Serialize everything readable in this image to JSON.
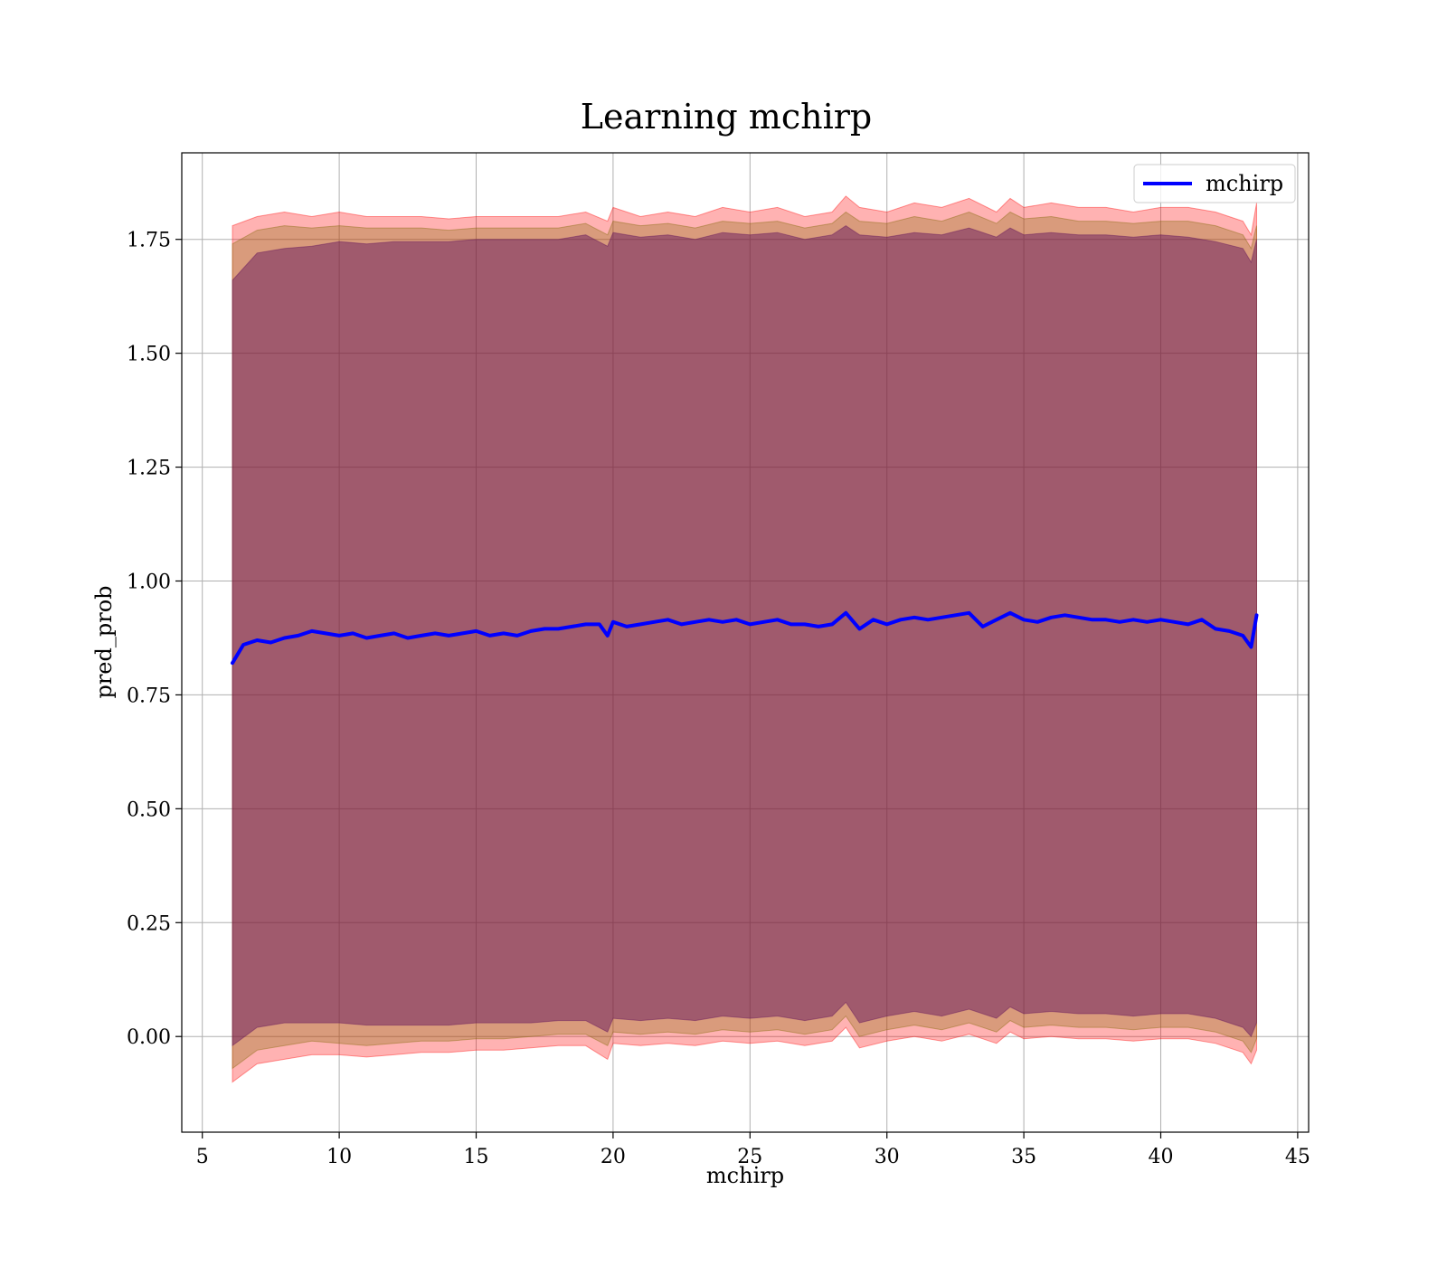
{
  "chart_data": {
    "type": "line",
    "title": "Learning mchirp",
    "xlabel": "mchirp",
    "ylabel": "pred_prob",
    "xlim": [
      4.25,
      45.4
    ],
    "ylim": [
      -0.21,
      1.94
    ],
    "xticks": [
      5,
      10,
      15,
      20,
      25,
      30,
      35,
      40,
      45
    ],
    "xtick_labels": [
      "5",
      "10",
      "15",
      "20",
      "25",
      "30",
      "35",
      "40",
      "45"
    ],
    "yticks": [
      0.0,
      0.25,
      0.5,
      0.75,
      1.0,
      1.25,
      1.5,
      1.75
    ],
    "ytick_labels": [
      "0.00",
      "0.25",
      "0.50",
      "0.75",
      "1.00",
      "1.25",
      "1.50",
      "1.75"
    ],
    "grid": true,
    "legend": {
      "placement": "top-right",
      "entries": [
        "mchirp"
      ]
    },
    "series": [
      {
        "name": "mchirp",
        "color": "#0000ff",
        "x": [
          6.1,
          6.5,
          7,
          7.5,
          8,
          8.5,
          9,
          9.5,
          10,
          10.5,
          11,
          11.5,
          12,
          12.5,
          13,
          13.5,
          14,
          14.5,
          15,
          15.5,
          16,
          16.5,
          17,
          17.5,
          18,
          18.5,
          19,
          19.5,
          19.8,
          20,
          20.5,
          21,
          21.5,
          22,
          22.5,
          23,
          23.5,
          24,
          24.5,
          25,
          25.5,
          26,
          26.5,
          27,
          27.5,
          28,
          28.5,
          29,
          29.5,
          30,
          30.5,
          31,
          31.5,
          32,
          32.5,
          33,
          33.5,
          34,
          34.5,
          35,
          35.5,
          36,
          36.5,
          37,
          37.5,
          38,
          38.5,
          39,
          39.5,
          40,
          40.5,
          41,
          41.5,
          42,
          42.5,
          43,
          43.3,
          43.5
        ],
        "y": [
          0.82,
          0.86,
          0.87,
          0.865,
          0.875,
          0.88,
          0.89,
          0.885,
          0.88,
          0.885,
          0.875,
          0.88,
          0.885,
          0.875,
          0.88,
          0.885,
          0.88,
          0.885,
          0.89,
          0.88,
          0.885,
          0.88,
          0.89,
          0.895,
          0.895,
          0.9,
          0.905,
          0.905,
          0.88,
          0.91,
          0.9,
          0.905,
          0.91,
          0.915,
          0.905,
          0.91,
          0.915,
          0.91,
          0.915,
          0.905,
          0.91,
          0.915,
          0.905,
          0.905,
          0.9,
          0.905,
          0.93,
          0.895,
          0.915,
          0.905,
          0.915,
          0.92,
          0.915,
          0.92,
          0.925,
          0.93,
          0.9,
          0.915,
          0.93,
          0.915,
          0.91,
          0.92,
          0.925,
          0.92,
          0.915,
          0.915,
          0.91,
          0.915,
          0.91,
          0.915,
          0.91,
          0.905,
          0.915,
          0.895,
          0.89,
          0.88,
          0.855,
          0.925
        ]
      }
    ],
    "bands": [
      {
        "color": "#ff0000",
        "opacity": 0.3,
        "x": [
          6.1,
          7,
          8,
          9,
          10,
          11,
          12,
          13,
          14,
          15,
          16,
          17,
          18,
          19,
          19.8,
          20,
          21,
          22,
          23,
          24,
          25,
          26,
          27,
          28,
          28.5,
          29,
          30,
          31,
          32,
          33,
          34,
          34.5,
          35,
          36,
          37,
          38,
          39,
          40,
          41,
          42,
          43,
          43.3,
          43.5
        ],
        "upper": [
          1.78,
          1.8,
          1.81,
          1.8,
          1.81,
          1.8,
          1.8,
          1.8,
          1.795,
          1.8,
          1.8,
          1.8,
          1.8,
          1.81,
          1.79,
          1.82,
          1.8,
          1.81,
          1.8,
          1.82,
          1.81,
          1.82,
          1.8,
          1.81,
          1.845,
          1.82,
          1.81,
          1.83,
          1.82,
          1.84,
          1.81,
          1.84,
          1.82,
          1.83,
          1.82,
          1.82,
          1.81,
          1.82,
          1.82,
          1.81,
          1.79,
          1.76,
          1.83
        ],
        "lower": [
          -0.1,
          -0.06,
          -0.05,
          -0.04,
          -0.04,
          -0.045,
          -0.04,
          -0.035,
          -0.035,
          -0.03,
          -0.03,
          -0.025,
          -0.02,
          -0.02,
          -0.05,
          -0.015,
          -0.02,
          -0.015,
          -0.02,
          -0.01,
          -0.015,
          -0.01,
          -0.02,
          -0.01,
          0.02,
          -0.025,
          -0.01,
          0.0,
          -0.01,
          0.005,
          -0.015,
          0.01,
          -0.005,
          0.0,
          -0.005,
          -0.005,
          -0.01,
          -0.005,
          -0.005,
          -0.015,
          -0.035,
          -0.06,
          -0.03
        ]
      },
      {
        "color": "#806600",
        "opacity": 0.3,
        "x": [
          6.1,
          7,
          8,
          9,
          10,
          11,
          12,
          13,
          14,
          15,
          16,
          17,
          18,
          19,
          19.8,
          20,
          21,
          22,
          23,
          24,
          25,
          26,
          27,
          28,
          28.5,
          29,
          30,
          31,
          32,
          33,
          34,
          34.5,
          35,
          36,
          37,
          38,
          39,
          40,
          41,
          42,
          43,
          43.3,
          43.5
        ],
        "upper": [
          1.74,
          1.77,
          1.78,
          1.775,
          1.78,
          1.775,
          1.775,
          1.775,
          1.77,
          1.775,
          1.775,
          1.775,
          1.775,
          1.785,
          1.76,
          1.79,
          1.78,
          1.785,
          1.775,
          1.79,
          1.785,
          1.79,
          1.775,
          1.785,
          1.81,
          1.79,
          1.785,
          1.8,
          1.79,
          1.81,
          1.785,
          1.81,
          1.795,
          1.8,
          1.79,
          1.79,
          1.785,
          1.79,
          1.79,
          1.78,
          1.76,
          1.73,
          1.78
        ],
        "lower": [
          -0.07,
          -0.03,
          -0.02,
          -0.01,
          -0.015,
          -0.02,
          -0.015,
          -0.01,
          -0.01,
          -0.005,
          -0.005,
          0.0,
          0.005,
          0.005,
          -0.02,
          0.01,
          0.005,
          0.01,
          0.005,
          0.015,
          0.01,
          0.015,
          0.005,
          0.015,
          0.045,
          0.0,
          0.015,
          0.025,
          0.015,
          0.03,
          0.01,
          0.035,
          0.02,
          0.025,
          0.02,
          0.02,
          0.015,
          0.02,
          0.02,
          0.01,
          -0.01,
          -0.035,
          -0.005
        ]
      },
      {
        "color": "#5a0a5a",
        "opacity": 0.45,
        "x": [
          6.1,
          7,
          8,
          9,
          10,
          11,
          12,
          13,
          14,
          15,
          16,
          17,
          18,
          19,
          19.8,
          20,
          21,
          22,
          23,
          24,
          25,
          26,
          27,
          28,
          28.5,
          29,
          30,
          31,
          32,
          33,
          34,
          34.5,
          35,
          36,
          37,
          38,
          39,
          40,
          41,
          42,
          43,
          43.3,
          43.5
        ],
        "upper": [
          1.66,
          1.72,
          1.73,
          1.735,
          1.745,
          1.74,
          1.745,
          1.745,
          1.745,
          1.75,
          1.75,
          1.75,
          1.75,
          1.76,
          1.735,
          1.765,
          1.755,
          1.76,
          1.75,
          1.765,
          1.76,
          1.765,
          1.75,
          1.76,
          1.78,
          1.76,
          1.755,
          1.765,
          1.76,
          1.775,
          1.755,
          1.775,
          1.76,
          1.765,
          1.76,
          1.76,
          1.755,
          1.76,
          1.755,
          1.745,
          1.73,
          1.7,
          1.75
        ],
        "lower": [
          -0.02,
          0.02,
          0.03,
          0.03,
          0.03,
          0.025,
          0.025,
          0.025,
          0.025,
          0.03,
          0.03,
          0.03,
          0.035,
          0.035,
          0.01,
          0.04,
          0.035,
          0.04,
          0.035,
          0.045,
          0.04,
          0.045,
          0.035,
          0.045,
          0.075,
          0.03,
          0.045,
          0.055,
          0.045,
          0.06,
          0.04,
          0.065,
          0.05,
          0.055,
          0.05,
          0.05,
          0.045,
          0.05,
          0.05,
          0.04,
          0.02,
          0.0,
          0.03
        ]
      }
    ],
    "colors": {
      "grid": "#b0b0b0",
      "axes": "#000000",
      "legend_border": "#cccccc"
    }
  }
}
